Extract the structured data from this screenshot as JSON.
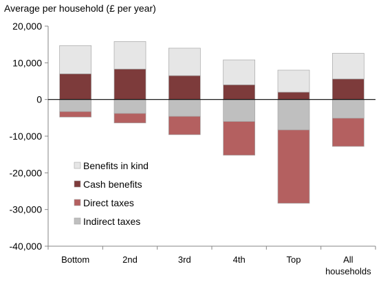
{
  "chart_data": {
    "type": "bar",
    "stacked": true,
    "ylabel": "Average per household (£ per year)",
    "categories": [
      [
        "Bottom"
      ],
      [
        "2nd"
      ],
      [
        "3rd"
      ],
      [
        "4th"
      ],
      [
        "Top"
      ],
      [
        "All",
        "households"
      ]
    ],
    "ylim": [
      -40000,
      20000
    ],
    "yticks": [
      20000,
      10000,
      0,
      -10000,
      -20000,
      -30000,
      -40000
    ],
    "ytick_labels": [
      "20,000",
      "10,000",
      "0",
      "-10,000",
      "-20,000",
      "-30,000",
      "-40,000"
    ],
    "grid": false,
    "legend_position": "bottom-left",
    "series": [
      {
        "name": "Benefits in kind",
        "color": "#e6e6e6",
        "values": [
          7700,
          7500,
          7500,
          6800,
          6000,
          7000
        ]
      },
      {
        "name": "Cash benefits",
        "color": "#7d3b3b",
        "values": [
          7000,
          8300,
          6500,
          4000,
          2000,
          5600
        ]
      },
      {
        "name": "Direct taxes",
        "color": "#b46060",
        "values": [
          -1500,
          -2600,
          -5000,
          -9200,
          -20000,
          -7700
        ]
      },
      {
        "name": "Indirect taxes",
        "color": "#bfbfbf",
        "values": [
          -3300,
          -3800,
          -4600,
          -6000,
          -8300,
          -5100
        ]
      }
    ],
    "legend_order": [
      "Benefits in kind",
      "Cash benefits",
      "Direct taxes",
      "Indirect taxes"
    ]
  }
}
